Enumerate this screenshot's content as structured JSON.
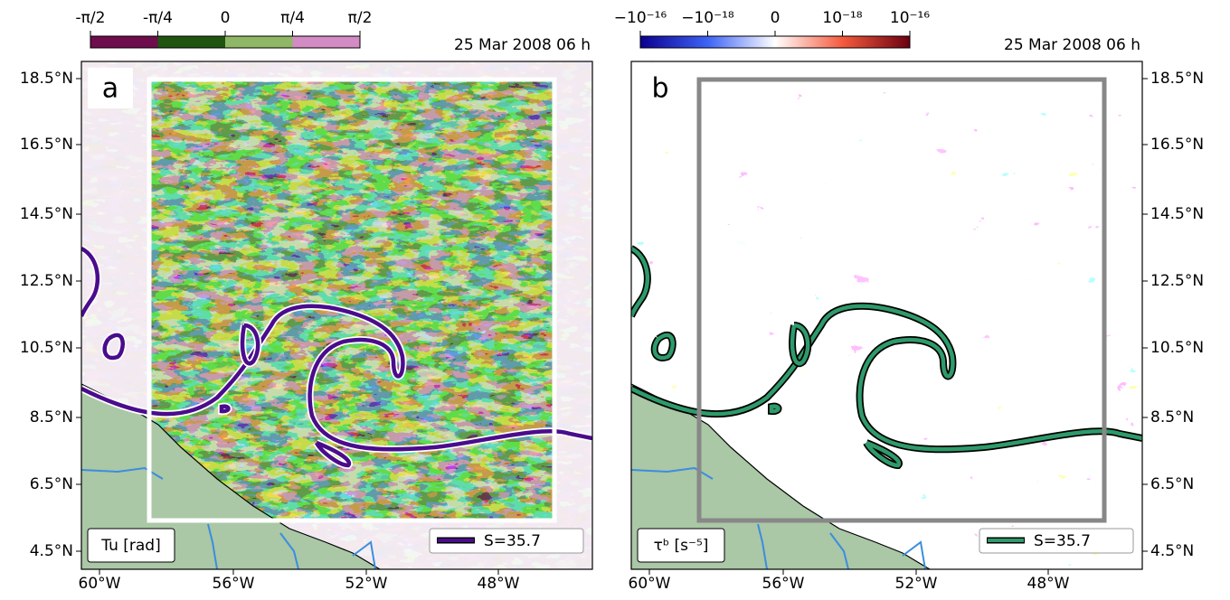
{
  "panels": [
    {
      "letter": "a",
      "colorbar_ticks": [
        "-π/2",
        "-π/4",
        "0",
        "π/4",
        "π/2"
      ],
      "colorbar_colors": [
        "#6e0c4c",
        "#1f5511",
        "#8fb765",
        "#d38bc3"
      ],
      "date": "25 Mar 2008 06 h",
      "label": "Tu [rad]",
      "legend": "S=35.7",
      "contour_color": "#4a0c8c",
      "contour_edge": "#ffffff",
      "box_color": "#ffffff"
    },
    {
      "letter": "b",
      "colorbar_ticks": [
        "−10⁻¹⁶",
        "−10⁻¹⁸",
        "0",
        "10⁻¹⁸",
        "10⁻¹⁶"
      ],
      "colorbar_colors": [
        "#0a0090",
        "#3d63f5",
        "#ffffff",
        "#f55a3d",
        "#6b0010"
      ],
      "date": "25 Mar 2008 06 h",
      "label": "τᵇ [s⁻⁵]",
      "legend": "S=35.7",
      "contour_color": "#2e9a6a",
      "contour_edge": "#000000",
      "box_color": "#888888"
    }
  ],
  "lat_ticks": [
    "18.5°N",
    "16.5°N",
    "14.5°N",
    "12.5°N",
    "10.5°N",
    "8.5°N",
    "6.5°N",
    "4.5°N"
  ],
  "lon_ticks": [
    "60°W",
    "56°W",
    "52°W",
    "48°W"
  ]
}
